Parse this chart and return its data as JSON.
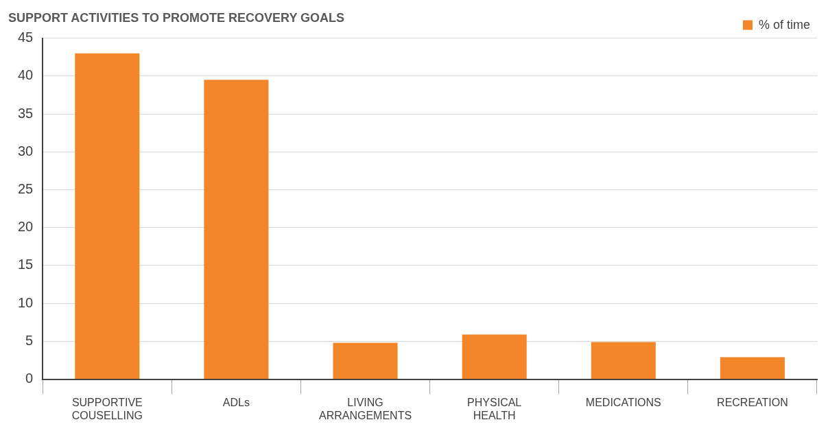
{
  "chart_data": {
    "type": "bar",
    "title": "SUPPORT ACTIVITIES TO PROMOTE RECOVERY GOALS",
    "categories": [
      "SUPPORTIVE COUSELLING",
      "ADLs",
      "LIVING ARRANGEMENTS",
      "PHYSICAL HEALTH",
      "MEDICATIONS",
      "RECREATION"
    ],
    "series": [
      {
        "name": "% of time",
        "color": "#f4862a",
        "values": [
          43,
          39.5,
          4.8,
          5.9,
          4.9,
          2.9
        ]
      }
    ],
    "ylim": [
      0,
      45
    ],
    "yticks": [
      0,
      5,
      10,
      15,
      20,
      25,
      30,
      35,
      40,
      45
    ],
    "grid": "y",
    "legend": "top right"
  }
}
